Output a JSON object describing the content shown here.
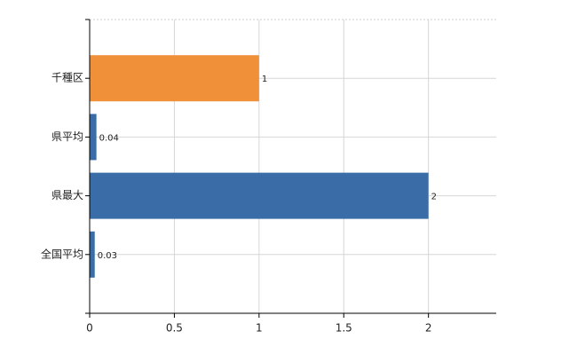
{
  "chart_data": {
    "type": "hbar",
    "categories": [
      "千種区",
      "県平均",
      "県最大",
      "全国平均"
    ],
    "values": [
      1,
      0.04,
      2,
      0.03
    ],
    "colors": [
      "#f0913a",
      "#3a6ca8",
      "#3a6ca8",
      "#3a6ca8"
    ],
    "xlim": [
      0,
      2.4
    ],
    "xticks": [
      0,
      0.5,
      1,
      1.5,
      2
    ],
    "grid": true
  }
}
